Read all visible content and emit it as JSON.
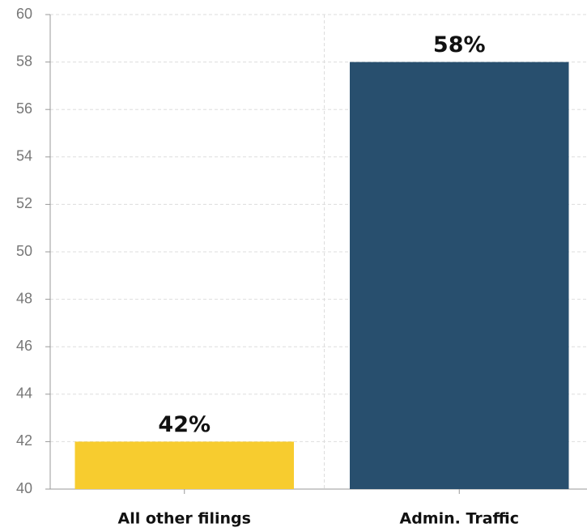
{
  "chart_data": {
    "type": "bar",
    "categories": [
      "All other filings",
      "Admin. Traffic"
    ],
    "values": [
      42,
      58
    ],
    "value_labels": [
      "42%",
      "58%"
    ],
    "colors": [
      "#f7cc2f",
      "#284f6e"
    ],
    "ylim": [
      40,
      60
    ],
    "yticks": [
      40,
      42,
      44,
      46,
      48,
      50,
      52,
      54,
      56,
      58,
      60
    ],
    "grid": true
  }
}
